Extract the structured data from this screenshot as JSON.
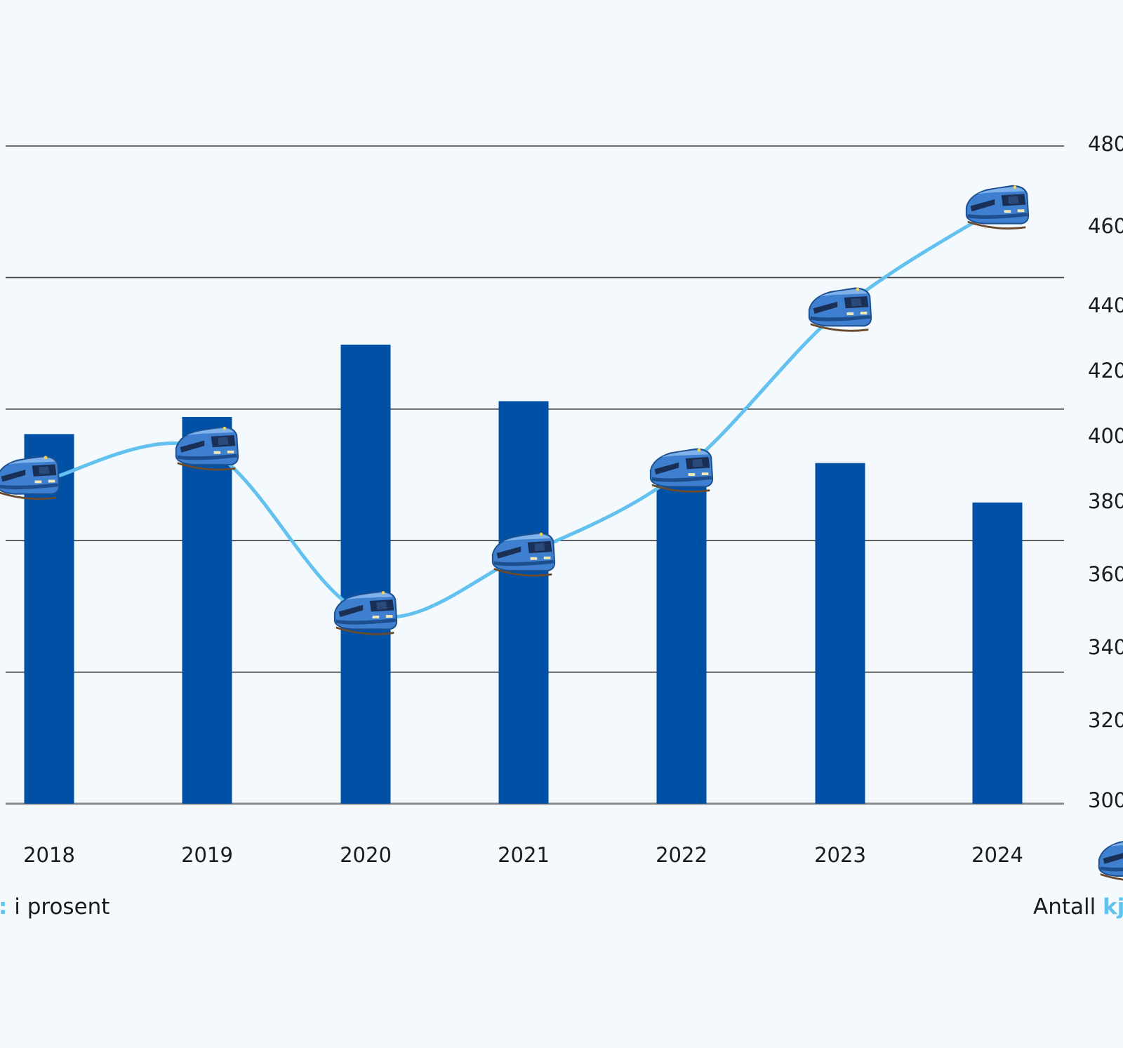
{
  "chart_data": {
    "type": "bar",
    "categories": [
      "2018",
      "2019",
      "2020",
      "2021",
      "2022",
      "2023",
      "2024"
    ],
    "series": [
      {
        "type": "bar",
        "axis": "left",
        "values": [
          28.1,
          29.4,
          34.9,
          30.6,
          25.3,
          25.9,
          22.9
        ],
        "color": "#0051a5"
      },
      {
        "type": "line",
        "axis": "right",
        "values": [
          389,
          397,
          352,
          368,
          391,
          435,
          463
        ],
        "color": "#63c1ef",
        "marker_icon": "train-icon"
      }
    ],
    "left_axis": {
      "range": [
        0,
        50
      ],
      "gridlines": [
        0,
        10,
        20,
        30,
        40,
        50
      ]
    },
    "right_axis": {
      "range": [
        300,
        480
      ],
      "ticks": [
        {
          "value": 480,
          "label": "480"
        },
        {
          "value": 460,
          "label": "460"
        },
        {
          "value": 440,
          "label": "440"
        },
        {
          "value": 420,
          "label": "420"
        },
        {
          "value": 400,
          "label": "400"
        },
        {
          "value": 380,
          "label": "380"
        },
        {
          "value": 360,
          "label": "360"
        },
        {
          "value": 340,
          "label": "340"
        },
        {
          "value": 320,
          "label": "320"
        },
        {
          "value": 300,
          "label": "300"
        }
      ]
    },
    "left_caption": {
      "accent": ":",
      "text": " i prosent"
    },
    "right_caption": {
      "text": "Antall ",
      "accent": "kj"
    },
    "grid": true
  }
}
